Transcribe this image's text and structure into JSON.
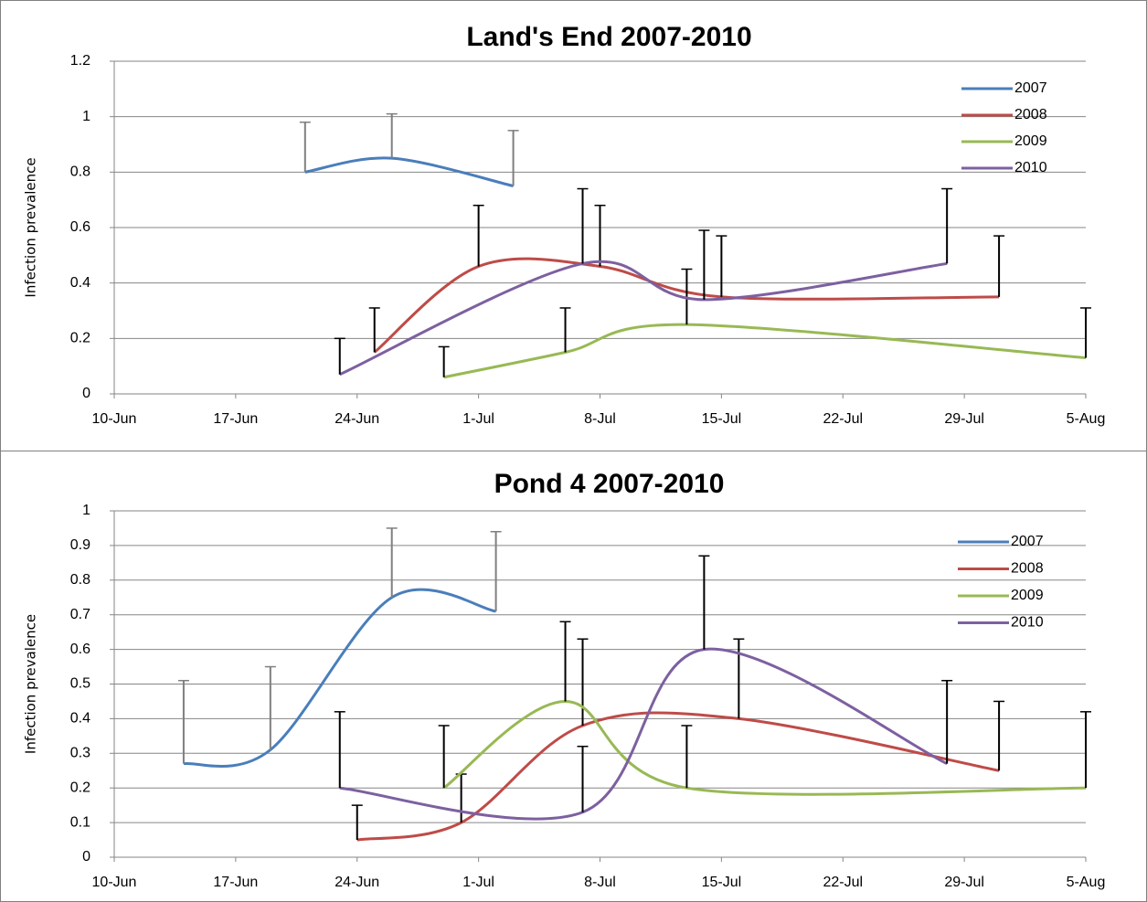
{
  "chart_data": [
    {
      "type": "line",
      "title": "Land's End 2007-2010",
      "ylabel": "Infection prevalence",
      "xlim": [
        "10-Jun",
        "5-Aug"
      ],
      "xticks": [
        "10-Jun",
        "17-Jun",
        "24-Jun",
        "1-Jul",
        "8-Jul",
        "15-Jul",
        "22-Jul",
        "29-Jul",
        "5-Aug"
      ],
      "ylim": [
        0,
        1.2
      ],
      "yticks": [
        0,
        0.2,
        0.4,
        0.6,
        0.8,
        1,
        1.2
      ],
      "grid": true,
      "legend": "top-right",
      "series": [
        {
          "name": "2007",
          "color": "#4a7ebb",
          "error_color": "#7f7f7f",
          "x": [
            "21-Jun",
            "26-Jun",
            "3-Jul"
          ],
          "values": [
            0.8,
            0.85,
            0.75
          ],
          "errors": [
            0.18,
            0.16,
            0.2
          ]
        },
        {
          "name": "2008",
          "color": "#be4b48",
          "error_color": "#000000",
          "x": [
            "25-Jun",
            "1-Jul",
            "8-Jul",
            "15-Jul",
            "31-Jul"
          ],
          "values": [
            0.15,
            0.46,
            0.46,
            0.35,
            0.35
          ],
          "errors": [
            0.16,
            0.22,
            0.22,
            0.22,
            0.22
          ]
        },
        {
          "name": "2009",
          "color": "#98b954",
          "error_color": "#000000",
          "x": [
            "29-Jun",
            "6-Jul",
            "13-Jul",
            "5-Aug"
          ],
          "values": [
            0.06,
            0.15,
            0.25,
            0.13
          ],
          "errors": [
            0.11,
            0.16,
            0.2,
            0.18
          ]
        },
        {
          "name": "2010",
          "color": "#7d60a0",
          "error_color": "#000000",
          "x": [
            "23-Jun",
            "7-Jul",
            "14-Jul",
            "28-Jul"
          ],
          "values": [
            0.07,
            0.47,
            0.34,
            0.47
          ],
          "errors": [
            0.13,
            0.27,
            0.25,
            0.27
          ]
        }
      ]
    },
    {
      "type": "line",
      "title": "Pond 4 2007-2010",
      "ylabel": "Infection prevalence",
      "xlim": [
        "10-Jun",
        "5-Aug"
      ],
      "xticks": [
        "10-Jun",
        "17-Jun",
        "24-Jun",
        "1-Jul",
        "8-Jul",
        "15-Jul",
        "22-Jul",
        "29-Jul",
        "5-Aug"
      ],
      "ylim": [
        0,
        1
      ],
      "yticks": [
        0,
        0.1,
        0.2,
        0.3,
        0.4,
        0.5,
        0.6,
        0.7,
        0.8,
        0.9,
        1
      ],
      "grid": true,
      "legend": "top-right",
      "series": [
        {
          "name": "2007",
          "color": "#4a7ebb",
          "error_color": "#7f7f7f",
          "x": [
            "14-Jun",
            "19-Jun",
            "26-Jun",
            "2-Jul"
          ],
          "values": [
            0.27,
            0.31,
            0.75,
            0.71
          ],
          "errors": [
            0.24,
            0.24,
            0.2,
            0.23
          ]
        },
        {
          "name": "2008",
          "color": "#be4b48",
          "error_color": "#000000",
          "x": [
            "24-Jun",
            "30-Jun",
            "7-Jul",
            "16-Jul",
            "31-Jul"
          ],
          "values": [
            0.05,
            0.1,
            0.38,
            0.4,
            0.25
          ],
          "errors": [
            0.1,
            0.14,
            0.25,
            0.23,
            0.2
          ]
        },
        {
          "name": "2009",
          "color": "#98b954",
          "error_color": "#000000",
          "x": [
            "29-Jun",
            "6-Jul",
            "13-Jul",
            "5-Aug"
          ],
          "values": [
            0.2,
            0.45,
            0.2,
            0.2
          ],
          "errors": [
            0.18,
            0.23,
            0.18,
            0.22
          ]
        },
        {
          "name": "2010",
          "color": "#7d60a0",
          "error_color": "#000000",
          "x": [
            "23-Jun",
            "7-Jul",
            "14-Jul",
            "28-Jul"
          ],
          "values": [
            0.2,
            0.13,
            0.6,
            0.27
          ],
          "errors": [
            0.22,
            0.19,
            0.27,
            0.24
          ]
        }
      ]
    }
  ]
}
